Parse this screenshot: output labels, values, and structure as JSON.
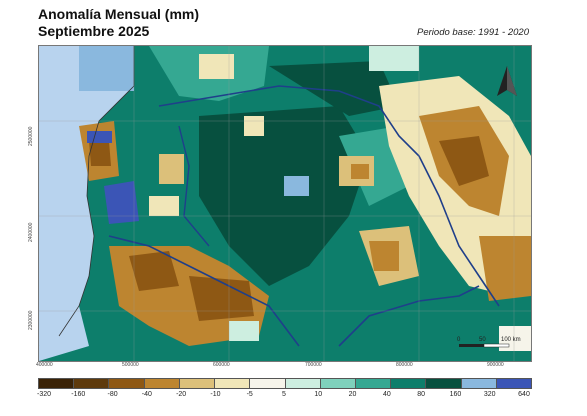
{
  "title": {
    "line1": "Anomalía Mensual (mm)",
    "line2": "Septiembre 2025",
    "period": "Periodo base: 1991 - 2020"
  },
  "map": {
    "x_ticks": [
      "400000",
      "500000",
      "600000",
      "700000",
      "800000",
      "900000"
    ],
    "y_ticks": [
      "2500000",
      "2400000",
      "2300000"
    ],
    "scale": {
      "ticks": [
        "0",
        "50",
        "100 km"
      ]
    },
    "north_arrow_icon": "north-arrow-icon"
  },
  "legend": {
    "colors": [
      "#3a2206",
      "#5e3a0c",
      "#8e5814",
      "#bd8530",
      "#dcc07a",
      "#f0e6b8",
      "#f6f4ea",
      "#cdeee0",
      "#7fd1bc",
      "#35a892",
      "#0d7e6b",
      "#07503f",
      "#8ab8de",
      "#3b55b6"
    ],
    "labels": [
      "-320",
      "-160",
      "-80",
      "-40",
      "-20",
      "-10",
      "-5",
      "5",
      "10",
      "20",
      "40",
      "80",
      "160",
      "320",
      "640"
    ]
  }
}
